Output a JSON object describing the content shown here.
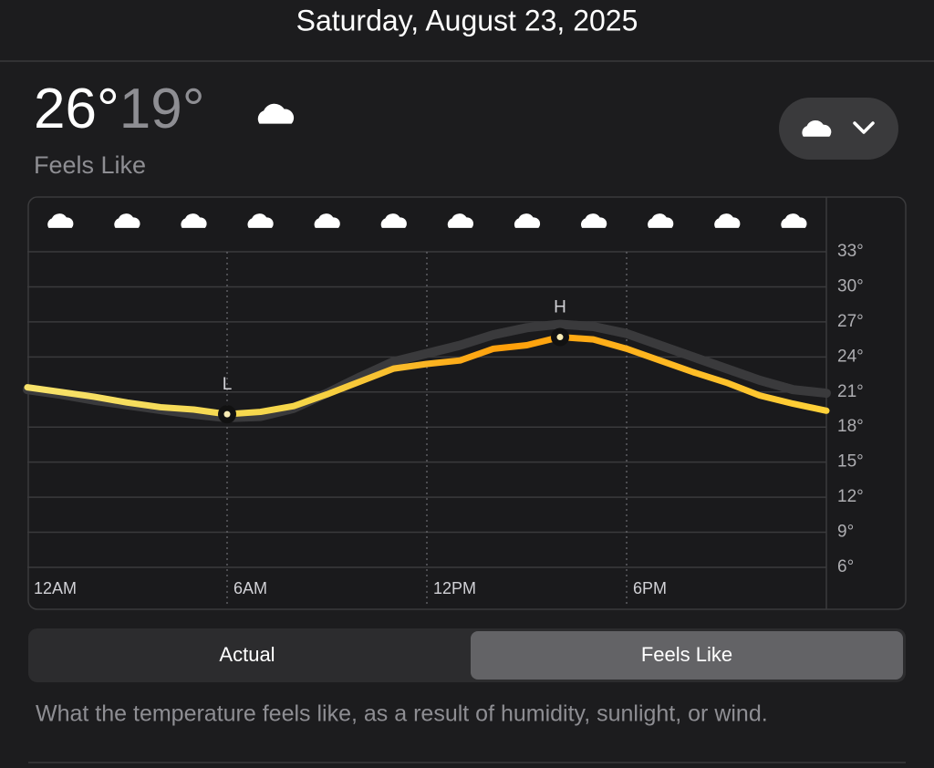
{
  "header": {
    "date": "Saturday, August 23, 2025"
  },
  "summary": {
    "high": "26°",
    "low": "19°",
    "mode_label": "Feels Like"
  },
  "chart_data": {
    "type": "line",
    "x": [
      0,
      1,
      2,
      3,
      4,
      5,
      6,
      7,
      8,
      9,
      10,
      11,
      12,
      13,
      14,
      15,
      16,
      17,
      18,
      19,
      20,
      21,
      22,
      23,
      24
    ],
    "xlim": [
      0,
      24
    ],
    "xticks": [
      {
        "value": 0,
        "label": "12AM"
      },
      {
        "value": 6,
        "label": "6AM"
      },
      {
        "value": 12,
        "label": "12PM"
      },
      {
        "value": 18,
        "label": "6PM"
      }
    ],
    "ylim": [
      6,
      33
    ],
    "yticks": [
      {
        "value": 6,
        "label": "6°"
      },
      {
        "value": 9,
        "label": "9°"
      },
      {
        "value": 12,
        "label": "12°"
      },
      {
        "value": 15,
        "label": "15°"
      },
      {
        "value": 18,
        "label": "18°"
      },
      {
        "value": 21,
        "label": "21°"
      },
      {
        "value": 24,
        "label": "24°"
      },
      {
        "value": 27,
        "label": "27°"
      },
      {
        "value": 30,
        "label": "30°"
      },
      {
        "value": 33,
        "label": "33°"
      }
    ],
    "grid": true,
    "series": [
      {
        "name": "Actual",
        "color": "#3a3a3c",
        "values": [
          21.2,
          20.8,
          20.3,
          19.9,
          19.5,
          19.1,
          18.8,
          18.9,
          19.6,
          20.9,
          22.3,
          23.6,
          24.3,
          25.0,
          25.9,
          26.5,
          26.8,
          26.6,
          26.0,
          25.0,
          24.0,
          23.0,
          22.0,
          21.2,
          20.9
        ]
      },
      {
        "name": "Feels Like",
        "color": "#ffb020",
        "values": [
          21.4,
          21.0,
          20.6,
          20.1,
          19.7,
          19.5,
          19.1,
          19.3,
          19.8,
          20.8,
          21.9,
          23.0,
          23.4,
          23.7,
          24.7,
          25.0,
          25.7,
          25.5,
          24.7,
          23.7,
          22.7,
          21.8,
          20.7,
          20.0,
          19.4
        ]
      }
    ],
    "low_label": "L",
    "high_label": "H"
  },
  "description": "What the temperature feels like, as a result of humidity, sunlight, or wind."
}
